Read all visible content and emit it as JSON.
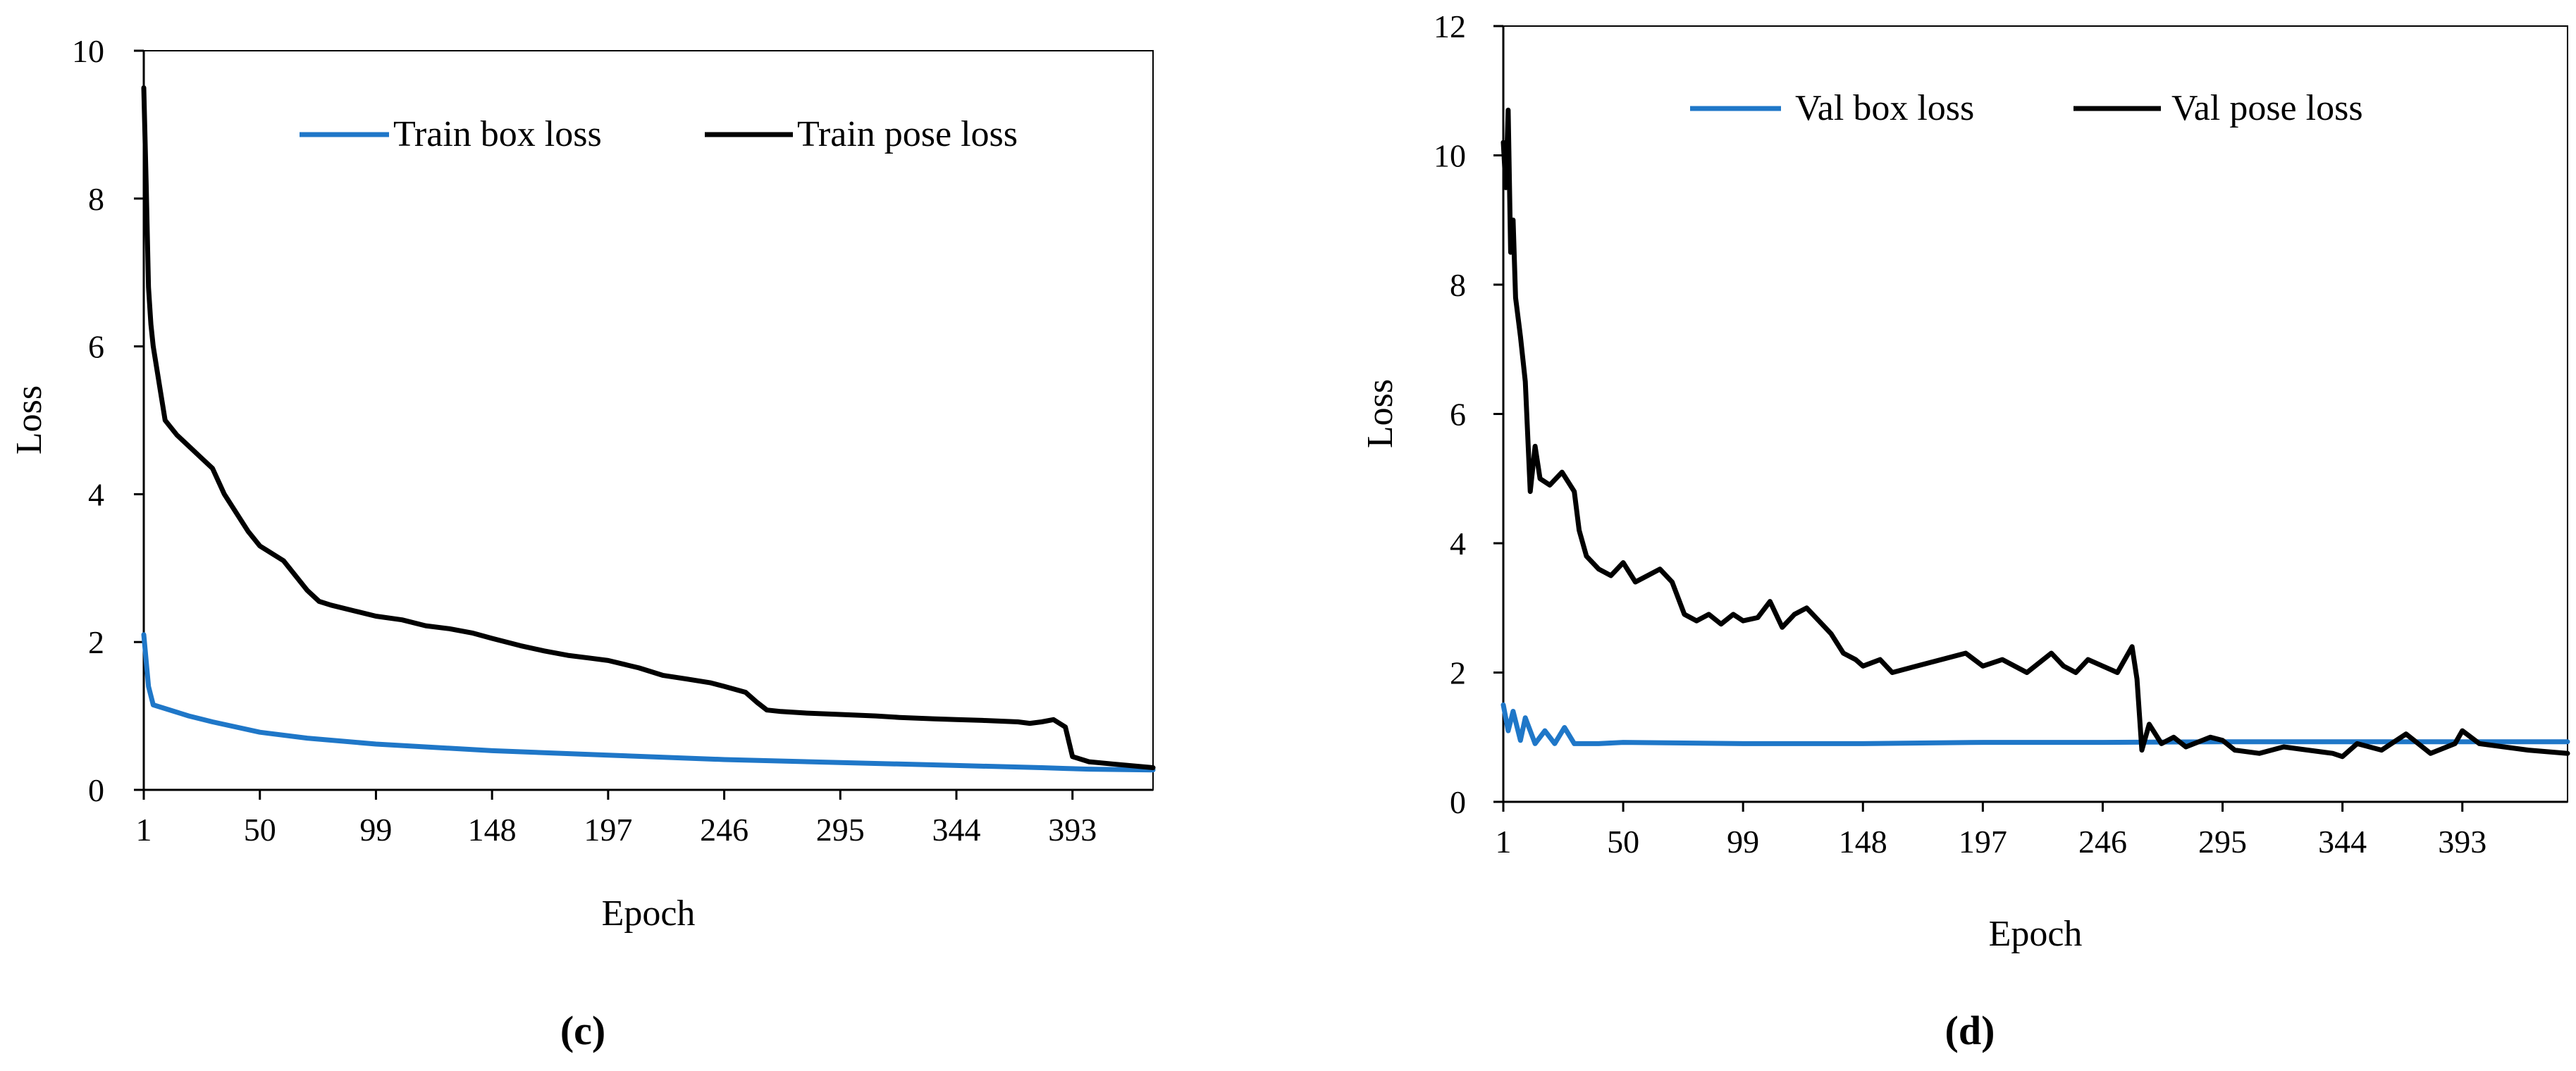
{
  "chart_data": [
    {
      "type": "line",
      "panel_label": "(c)",
      "xlabel": "Epoch",
      "ylabel": "Loss",
      "ylim": [
        0,
        10
      ],
      "yticks": [
        "0",
        "2",
        "4",
        "6",
        "8",
        "10"
      ],
      "xticks": [
        "1",
        "50",
        "99",
        "148",
        "197",
        "246",
        "295",
        "344",
        "393"
      ],
      "xlim": [
        1,
        427
      ],
      "grid": false,
      "legend_position": "top",
      "series": [
        {
          "name": "Train box loss",
          "color": "#1f77c8",
          "x": [
            1,
            3,
            5,
            10,
            20,
            30,
            50,
            70,
            99,
            148,
            197,
            246,
            295,
            344,
            380,
            390,
            400,
            427
          ],
          "values": [
            2.1,
            1.4,
            1.15,
            1.1,
            1.0,
            0.92,
            0.78,
            0.7,
            0.62,
            0.53,
            0.47,
            0.41,
            0.37,
            0.33,
            0.3,
            0.29,
            0.28,
            0.27
          ]
        },
        {
          "name": "Train pose loss",
          "color": "#000000",
          "x": [
            1,
            2,
            3,
            4,
            5,
            8,
            10,
            15,
            20,
            25,
            30,
            35,
            40,
            45,
            50,
            60,
            65,
            70,
            75,
            80,
            90,
            99,
            110,
            120,
            130,
            140,
            148,
            160,
            170,
            180,
            190,
            197,
            210,
            220,
            230,
            240,
            246,
            255,
            260,
            264,
            270,
            280,
            295,
            310,
            320,
            335,
            344,
            355,
            370,
            375,
            380,
            385,
            390,
            393,
            400,
            410,
            427
          ],
          "values": [
            9.5,
            8.2,
            6.8,
            6.3,
            6.0,
            5.4,
            5.0,
            4.8,
            4.65,
            4.5,
            4.35,
            4.0,
            3.75,
            3.5,
            3.3,
            3.1,
            2.9,
            2.7,
            2.55,
            2.5,
            2.42,
            2.35,
            2.3,
            2.22,
            2.18,
            2.12,
            2.05,
            1.95,
            1.88,
            1.82,
            1.78,
            1.75,
            1.65,
            1.55,
            1.5,
            1.45,
            1.4,
            1.32,
            1.18,
            1.08,
            1.06,
            1.04,
            1.02,
            1.0,
            0.98,
            0.96,
            0.95,
            0.94,
            0.92,
            0.9,
            0.92,
            0.95,
            0.85,
            0.45,
            0.38,
            0.35,
            0.3
          ]
        }
      ]
    },
    {
      "type": "line",
      "panel_label": "(d)",
      "xlabel": "Epoch",
      "ylabel": "Loss",
      "ylim": [
        0,
        12
      ],
      "yticks": [
        "0",
        "2",
        "4",
        "6",
        "8",
        "10",
        "12"
      ],
      "xticks": [
        "1",
        "50",
        "99",
        "148",
        "197",
        "246",
        "295",
        "344",
        "393"
      ],
      "xlim": [
        1,
        436
      ],
      "grid": false,
      "legend_position": "top",
      "series": [
        {
          "name": "Val box loss",
          "color": "#1f77c8",
          "x": [
            1,
            3,
            5,
            8,
            10,
            14,
            18,
            22,
            26,
            30,
            40,
            50,
            99,
            148,
            197,
            246,
            295,
            344,
            393,
            436
          ],
          "values": [
            1.5,
            1.1,
            1.4,
            0.95,
            1.3,
            0.9,
            1.1,
            0.9,
            1.15,
            0.9,
            0.9,
            0.92,
            0.9,
            0.9,
            0.92,
            0.92,
            0.93,
            0.93,
            0.93,
            0.93
          ]
        },
        {
          "name": "Val pose loss",
          "color": "#000000",
          "x": [
            1,
            2,
            3,
            4,
            5,
            6,
            8,
            10,
            12,
            14,
            16,
            20,
            25,
            30,
            32,
            35,
            40,
            45,
            50,
            55,
            60,
            65,
            70,
            75,
            80,
            85,
            90,
            95,
            99,
            105,
            110,
            115,
            120,
            125,
            130,
            135,
            140,
            145,
            148,
            155,
            160,
            170,
            180,
            190,
            197,
            205,
            215,
            225,
            230,
            235,
            240,
            246,
            252,
            258,
            260,
            262,
            265,
            270,
            275,
            280,
            290,
            295,
            300,
            310,
            320,
            330,
            340,
            344,
            350,
            360,
            370,
            380,
            390,
            393,
            400,
            410,
            420,
            436
          ],
          "values": [
            10.2,
            9.5,
            10.7,
            8.5,
            9.0,
            7.8,
            7.2,
            6.5,
            4.8,
            5.5,
            5.0,
            4.9,
            5.1,
            4.8,
            4.2,
            3.8,
            3.6,
            3.5,
            3.7,
            3.4,
            3.5,
            3.6,
            3.4,
            2.9,
            2.8,
            2.9,
            2.75,
            2.9,
            2.8,
            2.85,
            3.1,
            2.7,
            2.9,
            3.0,
            2.8,
            2.6,
            2.3,
            2.2,
            2.1,
            2.2,
            2.0,
            2.1,
            2.2,
            2.3,
            2.1,
            2.2,
            2.0,
            2.3,
            2.1,
            2.0,
            2.2,
            2.1,
            2.0,
            2.4,
            1.9,
            0.8,
            1.2,
            0.9,
            1.0,
            0.85,
            1.0,
            0.95,
            0.8,
            0.75,
            0.85,
            0.8,
            0.75,
            0.7,
            0.9,
            0.8,
            1.05,
            0.75,
            0.9,
            1.1,
            0.9,
            0.85,
            0.8,
            0.75
          ]
        }
      ]
    }
  ]
}
